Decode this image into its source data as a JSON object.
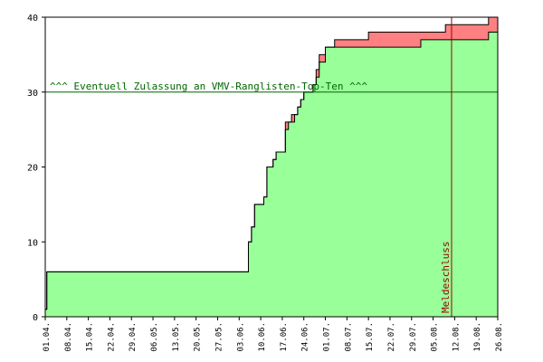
{
  "chart_data": {
    "type": "area",
    "title": "",
    "xlabel": "",
    "ylabel": "",
    "ylim": [
      0,
      40
    ],
    "y_ticks": [
      "0",
      "10",
      "20",
      "30",
      "40"
    ],
    "x_ticks": [
      "01.04.",
      "08.04.",
      "15.04.",
      "22.04.",
      "29.04.",
      "06.05.",
      "13.05.",
      "20.05.",
      "27.05.",
      "03.06.",
      "10.06.",
      "17.06.",
      "24.06.",
      "01.07.",
      "08.07.",
      "15.07.",
      "22.07.",
      "29.07.",
      "05.08.",
      "12.08.",
      "19.08.",
      "26.08."
    ],
    "x_range_days": [
      0,
      147
    ],
    "series": [
      {
        "color": "#ff8080",
        "x": [
          0,
          0.5,
          64,
          66,
          67,
          68,
          69,
          71,
          72,
          74,
          75,
          76,
          77,
          78,
          79,
          80,
          81,
          82,
          83,
          84,
          85,
          86,
          87,
          88,
          89,
          90,
          91,
          94,
          95,
          98,
          102,
          105,
          110,
          115,
          122,
          130,
          136,
          138,
          143,
          144,
          146
        ],
        "values": [
          1,
          6,
          6,
          10,
          12,
          15,
          15,
          16,
          20,
          21,
          22,
          22,
          22,
          26,
          26,
          27,
          27,
          28,
          29,
          30,
          30,
          30,
          31,
          33,
          35,
          35,
          36,
          37,
          37,
          37,
          37,
          38,
          38,
          38,
          38,
          39,
          39,
          39,
          39,
          40,
          40
        ]
      },
      {
        "color": "#99ff99",
        "x": [
          0,
          0.5,
          64,
          66,
          67,
          68,
          69,
          71,
          72,
          74,
          75,
          76,
          77,
          78,
          79,
          80,
          81,
          82,
          83,
          84,
          85,
          86,
          87,
          88,
          89,
          90,
          91,
          94,
          95,
          98,
          102,
          105,
          110,
          115,
          122,
          130,
          136,
          138,
          143,
          144,
          146
        ],
        "values": [
          1,
          6,
          6,
          10,
          12,
          15,
          15,
          16,
          20,
          21,
          22,
          22,
          22,
          25,
          26,
          26,
          27,
          28,
          29,
          30,
          30,
          30,
          31,
          32,
          34,
          34,
          36,
          36,
          36,
          36,
          36,
          36,
          36,
          36,
          37,
          37,
          37,
          37,
          37,
          38,
          38
        ]
      }
    ],
    "hline": {
      "y": 30,
      "label": "^^^ Eventuell Zulassung an VMV-Ranglisten-Top-Ten ^^^",
      "color": "#006600"
    },
    "vline": {
      "x": 132,
      "label": "Meldeschluss",
      "color": "#990000"
    }
  }
}
